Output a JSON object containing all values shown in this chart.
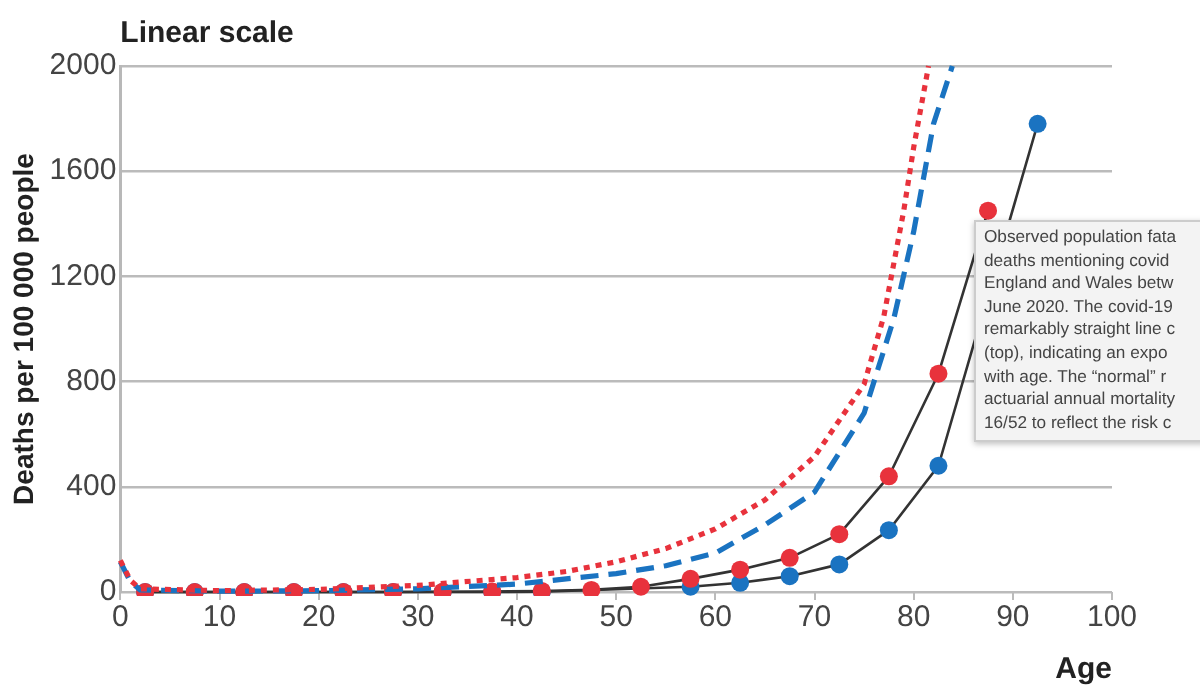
{
  "chart_data": {
    "type": "line",
    "title": "Linear scale",
    "xlabel": "Age",
    "ylabel": "Deaths per 100 000 people",
    "xlim": [
      0,
      100
    ],
    "xticks": [
      0,
      10,
      20,
      30,
      40,
      50,
      60,
      70,
      80,
      90,
      100
    ],
    "ylim": [
      0,
      2000
    ],
    "yticks": [
      0,
      400,
      800,
      1200,
      1600,
      2000
    ],
    "grid": "y",
    "legend": false,
    "annotations": [
      "Observed population fata\ndeaths mentioning covid\nEngland and Wales betw\nJune 2020. The covid-19\nremarkably straight line c\n(top), indicating an expo\nwith age. The “normal” r\nactuarial annual mortality\n16/52 to reflect the risk c"
    ],
    "series": [
      {
        "color": "#e8323c",
        "line_style": "dotted",
        "marker": "none",
        "x": [
          0,
          1,
          2,
          10,
          20,
          30,
          40,
          45,
          50,
          55,
          60,
          65,
          70,
          75,
          77,
          79,
          80,
          81.5
        ],
        "values": [
          120,
          45,
          12,
          5,
          10,
          25,
          55,
          78,
          115,
          165,
          240,
          350,
          515,
          790,
          1050,
          1450,
          1690,
          2000
        ]
      },
      {
        "color": "#1a73c1",
        "line_style": "dashed",
        "marker": "none",
        "x": [
          0,
          1,
          2,
          10,
          20,
          30,
          40,
          50,
          55,
          60,
          65,
          70,
          75,
          78,
          80,
          82,
          83.9
        ],
        "values": [
          115,
          40,
          8,
          3,
          5,
          12,
          30,
          70,
          100,
          148,
          255,
          380,
          680,
          1040,
          1370,
          1780,
          2000
        ]
      },
      {
        "color": "#333333",
        "line_style": "solid",
        "marker": "circle",
        "colors": [
          "#e8323c",
          "#e8323c",
          "#e8323c",
          "#e8323c",
          "#e8323c",
          "#e8323c",
          "#e8323c",
          "#e8323c",
          "#e8323c",
          "#e8323c",
          "#e8323c",
          "#e8323c",
          "#e8323c",
          "#e8323c",
          "#e8323c",
          "#e8323c",
          "#e8323c",
          "#e8323c"
        ],
        "x": [
          2.5,
          7.5,
          12.5,
          17.5,
          22.5,
          27.5,
          32.5,
          37.5,
          42.5,
          47.5,
          52.5,
          57.5,
          62.5,
          67.5,
          72.5,
          77.5,
          82.5,
          87.5
        ],
        "values": [
          0,
          0,
          0,
          0,
          0,
          0,
          1,
          2,
          4,
          8,
          20,
          50,
          85,
          130,
          220,
          440,
          830,
          1450
        ]
      },
      {
        "color": "#333333",
        "line_style": "solid",
        "marker": "circle",
        "colors": [
          "#1a73c1",
          "#1a73c1",
          "#1a73c1",
          "#1a73c1",
          "#1a73c1",
          "#1a73c1",
          "#1a73c1",
          "#1a73c1",
          "#1a73c1",
          "#1a73c1",
          "#1a73c1",
          "#1a73c1",
          "#1a73c1",
          "#1a73c1",
          "#1a73c1",
          "#1a73c1",
          "#1a73c1",
          "#1a73c1",
          "#1a73c1"
        ],
        "x": [
          2.5,
          7.5,
          12.5,
          17.5,
          22.5,
          27.5,
          32.5,
          37.5,
          42.5,
          47.5,
          52.5,
          57.5,
          62.5,
          67.5,
          72.5,
          77.5,
          82.5,
          87.5,
          92.5
        ],
        "values": [
          0,
          0,
          0,
          0,
          0,
          0,
          0,
          0,
          1,
          null,
          null,
          20,
          35,
          60,
          105,
          235,
          480,
          null,
          1780
        ]
      }
    ]
  }
}
